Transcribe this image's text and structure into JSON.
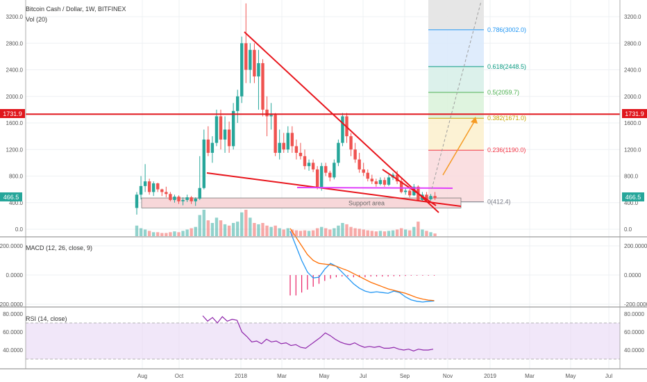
{
  "header": {
    "symbol_title": "Bitcoin Cash / Dollar, 1W, BITFINEX",
    "volume_label": "Vol (20)",
    "macd_label": "MACD (12, 26, close, 9)",
    "rsi_label": "RSI (14, close)"
  },
  "price_badges": {
    "resistance": "1731.9",
    "last_price": "466.5"
  },
  "annotations": {
    "support_area": "Support area"
  },
  "colors": {
    "up": "#26a69a",
    "down": "#ef5350",
    "trendline": "#e8141b",
    "horizontal_line": "#e0161c",
    "magenta_line": "#e040fb",
    "projection_arrow": "#f59a23",
    "macd_line": "#2196f3",
    "signal_line": "#ff6d00",
    "histogram": "#e91e63",
    "rsi_line": "#8e24aa",
    "rsi_band": "#e8d7f5"
  },
  "chart_data": [
    {
      "type": "candlestick",
      "title": "Bitcoin Cash / Dollar, 1W, BITFINEX",
      "x_axis_labels": [
        "Aug",
        "Oct",
        "2018",
        "Mar",
        "May",
        "Jul",
        "Sep",
        "Nov",
        "2019",
        "Mar",
        "May",
        "Jul"
      ],
      "y_ticks": [
        "0.0",
        "400.0",
        "800.0",
        "1200.0",
        "1600.0",
        "2000.0",
        "2400.0",
        "2800.0",
        "3200.0"
      ],
      "ylim": [
        -80,
        3400
      ],
      "grid": true,
      "candles": [
        {
          "o": 320,
          "h": 560,
          "l": 220,
          "c": 520
        },
        {
          "o": 520,
          "h": 800,
          "l": 450,
          "c": 650
        },
        {
          "o": 650,
          "h": 980,
          "l": 560,
          "c": 720
        },
        {
          "o": 720,
          "h": 760,
          "l": 520,
          "c": 560
        },
        {
          "o": 560,
          "h": 720,
          "l": 500,
          "c": 690
        },
        {
          "o": 690,
          "h": 700,
          "l": 560,
          "c": 600
        },
        {
          "o": 600,
          "h": 610,
          "l": 500,
          "c": 560
        },
        {
          "o": 560,
          "h": 640,
          "l": 480,
          "c": 530
        },
        {
          "o": 530,
          "h": 560,
          "l": 420,
          "c": 440
        },
        {
          "o": 440,
          "h": 520,
          "l": 400,
          "c": 490
        },
        {
          "o": 490,
          "h": 510,
          "l": 380,
          "c": 420
        },
        {
          "o": 420,
          "h": 480,
          "l": 360,
          "c": 440
        },
        {
          "o": 440,
          "h": 520,
          "l": 410,
          "c": 480
        },
        {
          "o": 480,
          "h": 500,
          "l": 380,
          "c": 420
        },
        {
          "o": 420,
          "h": 480,
          "l": 350,
          "c": 460
        },
        {
          "o": 460,
          "h": 1100,
          "l": 440,
          "c": 620
        },
        {
          "o": 620,
          "h": 1500,
          "l": 600,
          "c": 1350
        },
        {
          "o": 1350,
          "h": 1550,
          "l": 1100,
          "c": 1150
        },
        {
          "o": 1150,
          "h": 1400,
          "l": 1000,
          "c": 1300
        },
        {
          "o": 1300,
          "h": 1800,
          "l": 1250,
          "c": 1700
        },
        {
          "o": 1700,
          "h": 1800,
          "l": 1200,
          "c": 1350
        },
        {
          "o": 1350,
          "h": 1700,
          "l": 1150,
          "c": 1500
        },
        {
          "o": 1500,
          "h": 1620,
          "l": 1150,
          "c": 1250
        },
        {
          "o": 1250,
          "h": 1900,
          "l": 1200,
          "c": 1780
        },
        {
          "o": 1780,
          "h": 2100,
          "l": 1600,
          "c": 2000
        },
        {
          "o": 2000,
          "h": 2900,
          "l": 1900,
          "c": 2800
        },
        {
          "o": 2800,
          "h": 3400,
          "l": 2200,
          "c": 2400
        },
        {
          "o": 2400,
          "h": 2800,
          "l": 2200,
          "c": 2700
        },
        {
          "o": 2700,
          "h": 2800,
          "l": 2200,
          "c": 2300
        },
        {
          "o": 2300,
          "h": 2700,
          "l": 1800,
          "c": 2500
        },
        {
          "o": 2500,
          "h": 2560,
          "l": 1700,
          "c": 1800
        },
        {
          "o": 1800,
          "h": 2000,
          "l": 1400,
          "c": 1700
        },
        {
          "o": 1700,
          "h": 1900,
          "l": 1500,
          "c": 1720
        },
        {
          "o": 1720,
          "h": 1750,
          "l": 1100,
          "c": 1150
        },
        {
          "o": 1150,
          "h": 1500,
          "l": 1050,
          "c": 1300
        },
        {
          "o": 1300,
          "h": 1450,
          "l": 1150,
          "c": 1200
        },
        {
          "o": 1200,
          "h": 1550,
          "l": 1150,
          "c": 1450
        },
        {
          "o": 1450,
          "h": 1550,
          "l": 1150,
          "c": 1250
        },
        {
          "o": 1250,
          "h": 1350,
          "l": 1050,
          "c": 1150
        },
        {
          "o": 1150,
          "h": 1300,
          "l": 1050,
          "c": 1100
        },
        {
          "o": 1100,
          "h": 1200,
          "l": 900,
          "c": 950
        },
        {
          "o": 950,
          "h": 1050,
          "l": 880,
          "c": 1000
        },
        {
          "o": 1000,
          "h": 1050,
          "l": 860,
          "c": 900
        },
        {
          "o": 900,
          "h": 950,
          "l": 600,
          "c": 620
        },
        {
          "o": 620,
          "h": 1000,
          "l": 580,
          "c": 950
        },
        {
          "o": 950,
          "h": 1000,
          "l": 800,
          "c": 850
        },
        {
          "o": 850,
          "h": 880,
          "l": 720,
          "c": 780
        },
        {
          "o": 780,
          "h": 1050,
          "l": 750,
          "c": 1000
        },
        {
          "o": 1000,
          "h": 1350,
          "l": 950,
          "c": 1300
        },
        {
          "o": 1300,
          "h": 1750,
          "l": 1250,
          "c": 1700
        },
        {
          "o": 1700,
          "h": 1750,
          "l": 1300,
          "c": 1400
        },
        {
          "o": 1400,
          "h": 1450,
          "l": 1100,
          "c": 1200
        },
        {
          "o": 1200,
          "h": 1300,
          "l": 1000,
          "c": 1050
        },
        {
          "o": 1050,
          "h": 1150,
          "l": 850,
          "c": 900
        },
        {
          "o": 900,
          "h": 1000,
          "l": 800,
          "c": 850
        },
        {
          "o": 850,
          "h": 900,
          "l": 720,
          "c": 760
        },
        {
          "o": 760,
          "h": 820,
          "l": 680,
          "c": 720
        },
        {
          "o": 720,
          "h": 760,
          "l": 640,
          "c": 680
        },
        {
          "o": 680,
          "h": 780,
          "l": 660,
          "c": 740
        },
        {
          "o": 740,
          "h": 780,
          "l": 640,
          "c": 670
        },
        {
          "o": 670,
          "h": 820,
          "l": 650,
          "c": 780
        },
        {
          "o": 780,
          "h": 850,
          "l": 740,
          "c": 820
        },
        {
          "o": 820,
          "h": 880,
          "l": 680,
          "c": 720
        },
        {
          "o": 720,
          "h": 760,
          "l": 540,
          "c": 560
        },
        {
          "o": 560,
          "h": 620,
          "l": 520,
          "c": 580
        },
        {
          "o": 580,
          "h": 620,
          "l": 480,
          "c": 510
        },
        {
          "o": 510,
          "h": 680,
          "l": 500,
          "c": 640
        },
        {
          "o": 640,
          "h": 660,
          "l": 420,
          "c": 440
        },
        {
          "o": 440,
          "h": 560,
          "l": 420,
          "c": 520
        },
        {
          "o": 520,
          "h": 560,
          "l": 420,
          "c": 450
        },
        {
          "o": 450,
          "h": 530,
          "l": 430,
          "c": 500
        },
        {
          "o": 500,
          "h": 560,
          "l": 440,
          "c": 466.5
        }
      ],
      "volume": [
        0.4,
        0.3,
        0.25,
        0.2,
        0.15,
        0.15,
        0.12,
        0.12,
        0.15,
        0.18,
        0.15,
        0.2,
        0.25,
        0.3,
        0.35,
        0.8,
        1.0,
        0.6,
        0.5,
        0.7,
        0.6,
        0.45,
        0.4,
        0.5,
        0.55,
        0.9,
        1.0,
        0.7,
        0.5,
        0.45,
        0.5,
        0.4,
        0.35,
        0.4,
        0.3,
        0.25,
        0.3,
        0.25,
        0.22,
        0.2,
        0.22,
        0.2,
        0.22,
        0.3,
        0.35,
        0.3,
        0.25,
        0.3,
        0.4,
        0.5,
        0.45,
        0.35,
        0.3,
        0.28,
        0.25,
        0.22,
        0.2,
        0.18,
        0.2,
        0.18,
        0.2,
        0.22,
        0.25,
        0.3,
        0.25,
        0.22,
        0.35,
        0.55,
        0.25,
        0.2,
        0.15,
        0.1
      ],
      "horizontal_lines": [
        {
          "label": "1731.9",
          "value": 1731.9
        }
      ],
      "fibonacci": {
        "levels": [
          {
            "ratio": "0",
            "label": "0(412.4)",
            "price": 412.4,
            "color": "#787b86"
          },
          {
            "ratio": "0.236",
            "label": "0.236(1190.0)",
            "price": 1190.0,
            "color": "#f23645"
          },
          {
            "ratio": "0.382",
            "label": "0.382(1671.0)",
            "price": 1671.0,
            "color": "#c7a500"
          },
          {
            "ratio": "0.5",
            "label": "0.5(2059.7)",
            "price": 2059.7,
            "color": "#4caf50"
          },
          {
            "ratio": "0.618",
            "label": "0.618(2448.5)",
            "price": 2448.5,
            "color": "#089981"
          },
          {
            "ratio": "0.786",
            "label": "0.786(3002.0)",
            "price": 3002.0,
            "color": "#2196f3"
          }
        ]
      }
    },
    {
      "type": "line",
      "title": "MACD (12, 26, close, 9)",
      "y_ticks": [
        "200.0000",
        "0.0000",
        "-200.0000"
      ],
      "ylim": [
        -260,
        260
      ],
      "series": [
        {
          "name": "MACD",
          "values": [
            300,
            200,
            100,
            20,
            -20,
            -15,
            40,
            80,
            60,
            20,
            -20,
            -60,
            -90,
            -110,
            -120,
            -115,
            -120,
            -125,
            -110,
            -120,
            -150,
            -170,
            -180,
            -185,
            -180,
            -178
          ]
        },
        {
          "name": "Signal",
          "values": [
            320,
            260,
            200,
            140,
            100,
            80,
            75,
            70,
            60,
            45,
            30,
            10,
            -10,
            -30,
            -50,
            -65,
            -80,
            -95,
            -105,
            -115,
            -125,
            -140,
            -155,
            -165,
            -172,
            -175
          ]
        }
      ],
      "histogram": [
        -140,
        -140,
        -120,
        -100,
        -80,
        -60,
        -40,
        -25,
        -15,
        -10,
        -10,
        -15,
        -15,
        -15,
        -10,
        -10,
        -10,
        -10,
        -8,
        -8,
        -6,
        -4,
        -4,
        -4,
        -4,
        -4
      ]
    },
    {
      "type": "line",
      "title": "RSI (14, close)",
      "y_ticks": [
        "80.0000",
        "60.0000",
        "40.0000"
      ],
      "ylim": [
        25,
        85
      ],
      "band": [
        30,
        70
      ],
      "series": [
        {
          "name": "RSI",
          "values": [
            78,
            72,
            76,
            70,
            77,
            72,
            74,
            73,
            60,
            55,
            49,
            50,
            47,
            52,
            49,
            50,
            47,
            48,
            45,
            46,
            43,
            42,
            46,
            50,
            54,
            59,
            56,
            52,
            49,
            47,
            46,
            48,
            45,
            43,
            44,
            43,
            44,
            42,
            42,
            43,
            41,
            40,
            41,
            39,
            41,
            40,
            40,
            41
          ]
        }
      ]
    }
  ]
}
